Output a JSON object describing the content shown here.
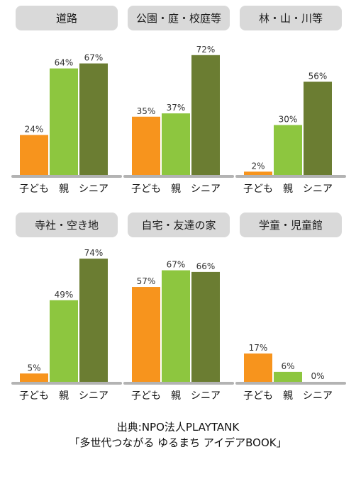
{
  "chart_data": [
    {
      "type": "bar",
      "title": "道路",
      "categories": [
        "子ども",
        "親",
        "シニア"
      ],
      "values": [
        24,
        64,
        67
      ],
      "value_labels": [
        "24%",
        "64%",
        "67%"
      ],
      "ylim": [
        0,
        80
      ]
    },
    {
      "type": "bar",
      "title": "公園・庭・校庭等",
      "categories": [
        "子ども",
        "親",
        "シニア"
      ],
      "values": [
        35,
        37,
        72
      ],
      "value_labels": [
        "35%",
        "37%",
        "72%"
      ],
      "ylim": [
        0,
        80
      ]
    },
    {
      "type": "bar",
      "title": "林・山・川等",
      "categories": [
        "子ども",
        "親",
        "シニア"
      ],
      "values": [
        2,
        30,
        56
      ],
      "value_labels": [
        "2%",
        "30%",
        "56%"
      ],
      "ylim": [
        0,
        80
      ]
    },
    {
      "type": "bar",
      "title": "寺社・空き地",
      "categories": [
        "子ども",
        "親",
        "シニア"
      ],
      "values": [
        5,
        49,
        74
      ],
      "value_labels": [
        "5%",
        "49%",
        "74%"
      ],
      "ylim": [
        0,
        80
      ]
    },
    {
      "type": "bar",
      "title": "自宅・友達の家",
      "categories": [
        "子ども",
        "親",
        "シニア"
      ],
      "values": [
        57,
        67,
        66
      ],
      "value_labels": [
        "57%",
        "67%",
        "66%"
      ],
      "ylim": [
        0,
        80
      ]
    },
    {
      "type": "bar",
      "title": "学童・児童館",
      "categories": [
        "子ども",
        "親",
        "シニア"
      ],
      "values": [
        17,
        6,
        0
      ],
      "value_labels": [
        "17%",
        "6%",
        "0%"
      ],
      "ylim": [
        0,
        80
      ]
    }
  ],
  "colors": {
    "child": "#f7941d",
    "parent": "#8dc63f",
    "senior": "#6b7d32",
    "title_box": "#d9d9d9",
    "axis": "#b3b3b3"
  },
  "source": {
    "line1": "出典:NPO法人PLAYTANK",
    "line2": "「多世代つながる ゆるまち アイデアBOOK」"
  }
}
